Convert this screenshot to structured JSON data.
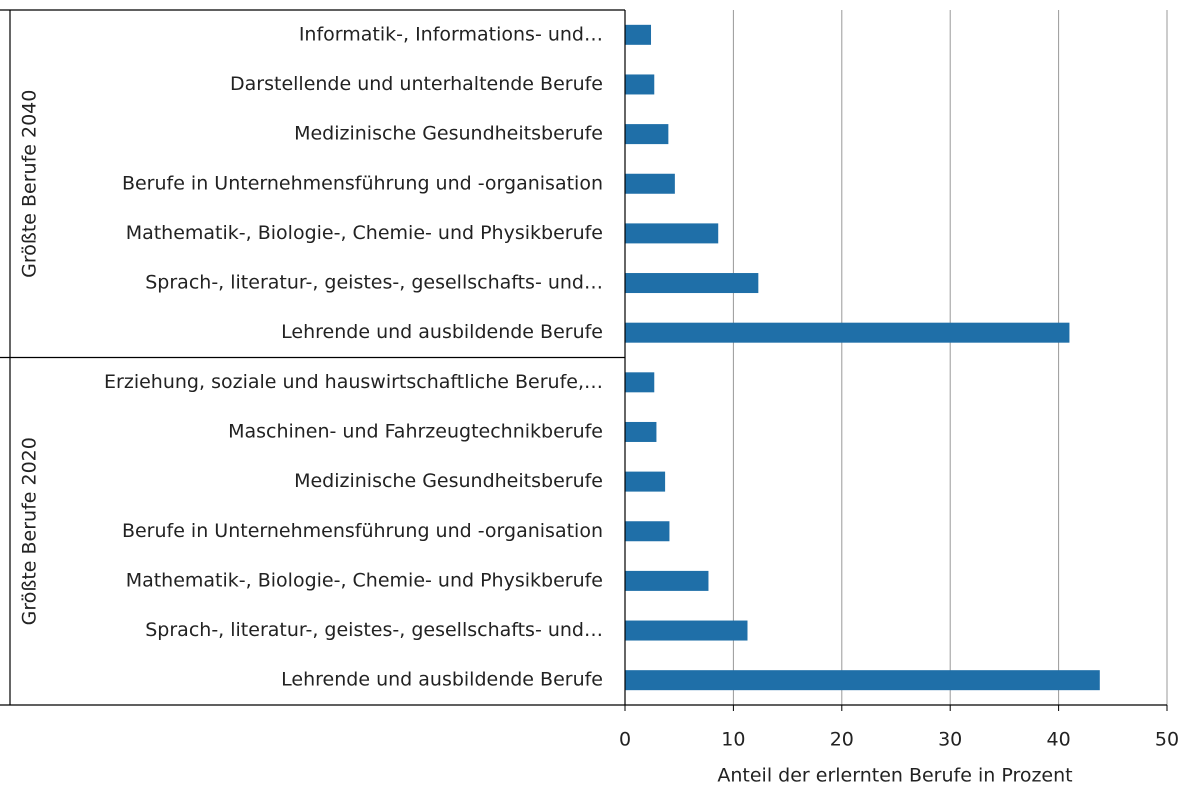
{
  "chart_data": {
    "type": "bar",
    "orientation": "horizontal",
    "xlabel": "Anteil der erlernten Berufe in Prozent",
    "color": "#1f6fa8",
    "groups": [
      {
        "name": "Größte Berufe 2040",
        "categories": [
          "Informatik-, Informations- und…",
          "Darstellende und unterhaltende Berufe",
          "Medizinische Gesundheitsberufe",
          "Berufe in Unternehmensführung und -organisation",
          "Mathematik-, Biologie-, Chemie- und Physikberufe",
          "Sprach-, literatur-, geistes-, gesellschafts- und…",
          "Lehrende und ausbildende Berufe"
        ],
        "values": [
          2.4,
          2.7,
          4.0,
          4.6,
          8.6,
          12.3,
          41.0
        ]
      },
      {
        "name": "Größte Berufe 2020",
        "categories": [
          "Erziehung, soziale und hauswirtschaftliche Berufe,…",
          "Maschinen- und Fahrzeugtechnikberufe",
          "Medizinische Gesundheitsberufe",
          "Berufe in Unternehmensführung und -organisation",
          "Mathematik-, Biologie-, Chemie- und Physikberufe",
          "Sprach-, literatur-, geistes-, gesellschafts- und…",
          "Lehrende und ausbildende Berufe"
        ],
        "values": [
          2.7,
          2.9,
          3.7,
          4.1,
          7.7,
          11.3,
          43.8
        ]
      }
    ],
    "xlim": [
      0,
      50
    ],
    "xticks": [
      0,
      10,
      20,
      30,
      40,
      50
    ],
    "grid": true
  }
}
